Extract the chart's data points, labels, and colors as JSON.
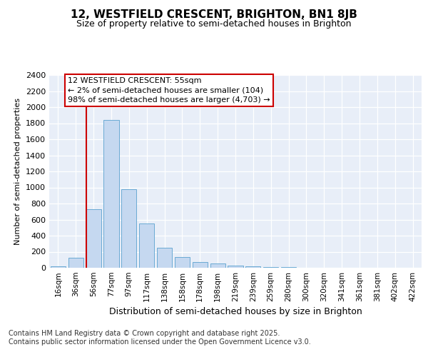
{
  "title": "12, WESTFIELD CRESCENT, BRIGHTON, BN1 8JB",
  "subtitle": "Size of property relative to semi-detached houses in Brighton",
  "xlabel": "Distribution of semi-detached houses by size in Brighton",
  "ylabel": "Number of semi-detached properties",
  "categories": [
    "16sqm",
    "36sqm",
    "56sqm",
    "77sqm",
    "97sqm",
    "117sqm",
    "138sqm",
    "158sqm",
    "178sqm",
    "198sqm",
    "219sqm",
    "239sqm",
    "259sqm",
    "280sqm",
    "300sqm",
    "320sqm",
    "341sqm",
    "361sqm",
    "381sqm",
    "402sqm",
    "422sqm"
  ],
  "values": [
    15,
    125,
    730,
    1840,
    980,
    550,
    250,
    130,
    70,
    55,
    30,
    15,
    10,
    5,
    3,
    2,
    1,
    0,
    0,
    0,
    0
  ],
  "bar_color": "#c5d8f0",
  "bar_edge_color": "#6aaad4",
  "background_color": "#e8eef8",
  "vline_color": "#cc0000",
  "vline_x_index": 2,
  "annotation_text": "12 WESTFIELD CRESCENT: 55sqm\n← 2% of semi-detached houses are smaller (104)\n98% of semi-detached houses are larger (4,703) →",
  "annotation_box_color": "white",
  "annotation_box_edge": "#cc0000",
  "footer": "Contains HM Land Registry data © Crown copyright and database right 2025.\nContains public sector information licensed under the Open Government Licence v3.0.",
  "ylim": [
    0,
    2400
  ],
  "yticks": [
    0,
    200,
    400,
    600,
    800,
    1000,
    1200,
    1400,
    1600,
    1800,
    2000,
    2200,
    2400
  ],
  "title_fontsize": 11,
  "subtitle_fontsize": 9,
  "ylabel_fontsize": 8,
  "xlabel_fontsize": 9,
  "tick_fontsize": 8,
  "xtick_fontsize": 7.5,
  "annotation_fontsize": 8,
  "footer_fontsize": 7
}
